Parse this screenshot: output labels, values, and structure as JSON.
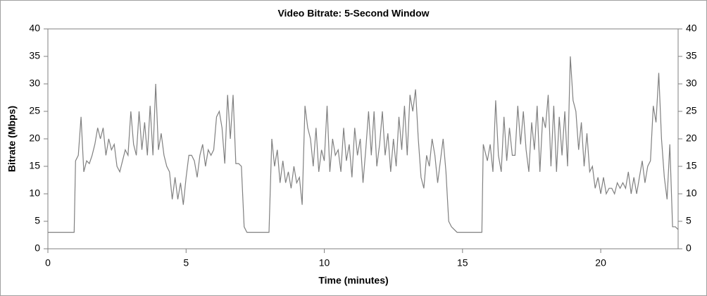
{
  "chart_data": {
    "type": "line",
    "title": "Video Bitrate: 5-Second Window",
    "x_label": "Time (minutes)",
    "y_label": "Bitrate (Mbps)",
    "xlim": [
      0,
      22.8
    ],
    "ylim": [
      0,
      40
    ],
    "xticks": [
      0,
      5,
      10,
      15,
      20
    ],
    "yticks": [
      0,
      5,
      10,
      15,
      20,
      25,
      30,
      35,
      40
    ],
    "color": "#808080",
    "x": [
      0,
      0.5,
      0.95,
      1.0,
      1.1,
      1.2,
      1.3,
      1.4,
      1.5,
      1.6,
      1.7,
      1.8,
      1.9,
      2.0,
      2.1,
      2.2,
      2.3,
      2.4,
      2.5,
      2.6,
      2.7,
      2.8,
      2.9,
      3.0,
      3.1,
      3.2,
      3.3,
      3.4,
      3.5,
      3.6,
      3.7,
      3.8,
      3.9,
      4.0,
      4.1,
      4.2,
      4.3,
      4.4,
      4.5,
      4.6,
      4.7,
      4.8,
      4.9,
      5.0,
      5.1,
      5.2,
      5.3,
      5.4,
      5.5,
      5.6,
      5.7,
      5.8,
      5.9,
      6.0,
      6.1,
      6.2,
      6.3,
      6.4,
      6.5,
      6.6,
      6.7,
      6.8,
      6.9,
      7.0,
      7.1,
      7.2,
      7.5,
      7.95,
      8.0,
      8.1,
      8.2,
      8.3,
      8.4,
      8.5,
      8.6,
      8.7,
      8.8,
      8.9,
      9.0,
      9.1,
      9.2,
      9.3,
      9.4,
      9.5,
      9.6,
      9.7,
      9.8,
      9.9,
      10.0,
      10.1,
      10.2,
      10.3,
      10.4,
      10.5,
      10.6,
      10.7,
      10.8,
      10.9,
      11.0,
      11.1,
      11.2,
      11.3,
      11.4,
      11.5,
      11.6,
      11.7,
      11.8,
      11.9,
      12.0,
      12.1,
      12.2,
      12.3,
      12.4,
      12.5,
      12.6,
      12.7,
      12.8,
      12.9,
      13.0,
      13.1,
      13.2,
      13.3,
      13.4,
      13.5,
      13.6,
      13.7,
      13.8,
      13.9,
      14.0,
      14.1,
      14.2,
      14.3,
      14.4,
      14.5,
      14.6,
      14.8,
      15.2,
      15.7,
      15.75,
      15.9,
      16.0,
      16.1,
      16.2,
      16.3,
      16.4,
      16.5,
      16.6,
      16.7,
      16.8,
      16.9,
      17.0,
      17.1,
      17.2,
      17.3,
      17.4,
      17.5,
      17.6,
      17.7,
      17.8,
      17.9,
      18.0,
      18.1,
      18.2,
      18.3,
      18.4,
      18.5,
      18.6,
      18.7,
      18.8,
      18.9,
      19.0,
      19.1,
      19.2,
      19.3,
      19.4,
      19.5,
      19.6,
      19.7,
      19.8,
      19.9,
      20.0,
      20.1,
      20.2,
      20.3,
      20.4,
      20.5,
      20.6,
      20.7,
      20.8,
      20.9,
      21.0,
      21.1,
      21.2,
      21.3,
      21.4,
      21.5,
      21.6,
      21.7,
      21.8,
      21.9,
      22.0,
      22.1,
      22.2,
      22.3,
      22.4,
      22.5,
      22.6,
      22.7,
      22.8
    ],
    "values": [
      3,
      3,
      3,
      16,
      17,
      24,
      14,
      16,
      15.5,
      17,
      19,
      22,
      20,
      22,
      17,
      20,
      18,
      19,
      15,
      14,
      16,
      18,
      17,
      25,
      19,
      17,
      25,
      18,
      23,
      17,
      26,
      17,
      30,
      18,
      21,
      17,
      15,
      14,
      9,
      13,
      9,
      12,
      8,
      13,
      17,
      17,
      16,
      13,
      17,
      19,
      15,
      18,
      17,
      18,
      24,
      25,
      22,
      15.5,
      28,
      20,
      28,
      15.5,
      15.5,
      15,
      4,
      3,
      3,
      3,
      3,
      20,
      15,
      18,
      12,
      16,
      12,
      14,
      11,
      15,
      12,
      13,
      8,
      26,
      22,
      20,
      15,
      22,
      14,
      18,
      16,
      26,
      14,
      20,
      17,
      18,
      14,
      22,
      16,
      19,
      13,
      22,
      17,
      20,
      12,
      18,
      25,
      17,
      25,
      15,
      19,
      25,
      17,
      21,
      14,
      20,
      15,
      24,
      18,
      26,
      17,
      28,
      25,
      29,
      20,
      13,
      11,
      17,
      15,
      20,
      17,
      12,
      16,
      20,
      14,
      5,
      4,
      3,
      3,
      3,
      19,
      16,
      19,
      14,
      27,
      17,
      14,
      24,
      16,
      22,
      17,
      17,
      26,
      19,
      25,
      18,
      14,
      23,
      18,
      26,
      14,
      24,
      22,
      28,
      15,
      26,
      14,
      24,
      17,
      25,
      15,
      35,
      27,
      25,
      18,
      23,
      15,
      21,
      14,
      15,
      11,
      13,
      10,
      13,
      10,
      11,
      11,
      10,
      12,
      11,
      12,
      11,
      14,
      10,
      13,
      10,
      13,
      16,
      12,
      15,
      16,
      26,
      23,
      32,
      20,
      13,
      9,
      19,
      4,
      4,
      3.5
    ]
  }
}
